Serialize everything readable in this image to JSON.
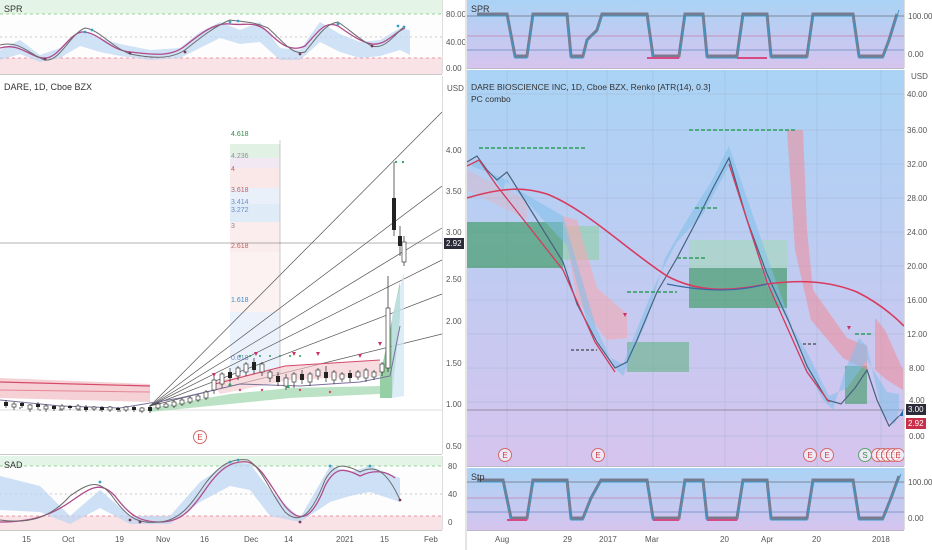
{
  "left": {
    "spr": {
      "label": "SPR",
      "ticks": [
        "80.00",
        "40.00",
        "0.00"
      ]
    },
    "main": {
      "title": "DARE, 1D, Cboe BZX",
      "currency": "USD",
      "price_ticks": [
        "4.00",
        "3.50",
        "3.00",
        "2.50",
        "2.00",
        "1.50",
        "1.00",
        "0.50"
      ],
      "price_badge": "2.92",
      "fib_levels": [
        "4.618",
        "4.236",
        "4",
        "3.618",
        "3.414",
        "3.272",
        "3",
        "2.618",
        "1.618",
        "0.618"
      ],
      "event_marker": "E"
    },
    "sad": {
      "label": "SAD",
      "ticks": [
        "80",
        "40",
        "0"
      ]
    },
    "x_ticks": [
      "15",
      "Oct",
      "19",
      "Nov",
      "16",
      "Dec",
      "14",
      "2021",
      "15",
      "Feb"
    ]
  },
  "right": {
    "spr": {
      "label": "SPR",
      "ticks": [
        "100.00",
        "0.00"
      ]
    },
    "main": {
      "title": "DARE BIOSCIENCE INC, 1D, Cboe BZX, Renko [ATR(14), 0.3]",
      "subtitle": "PC combo",
      "currency": "USD",
      "price_ticks": [
        "40.00",
        "36.00",
        "32.00",
        "28.00",
        "24.00",
        "20.00",
        "16.00",
        "12.00",
        "8.00",
        "4.00",
        "0.00"
      ],
      "price_badges": [
        "3.00",
        "2.92"
      ],
      "event_markers": [
        "E",
        "E",
        "E",
        "E",
        "S",
        "E",
        "E",
        "E",
        "E",
        "E"
      ]
    },
    "stp": {
      "label": "Stp",
      "ticks": [
        "100.00",
        "0.00"
      ]
    },
    "x_ticks": [
      "Aug",
      "29",
      "2017",
      "Mar",
      "20",
      "Apr",
      "20",
      "2018"
    ]
  },
  "colors": {
    "up_green": "#2e9d5b",
    "down_red": "#e0475b",
    "ema_red": "#d93a5e",
    "fan_gray": "#555555",
    "right_bg_top": "#a9d3f5",
    "right_bg_bottom": "#d6c4ee",
    "badge_dark": "#2b2b3a",
    "badge_red": "#c8304a"
  }
}
